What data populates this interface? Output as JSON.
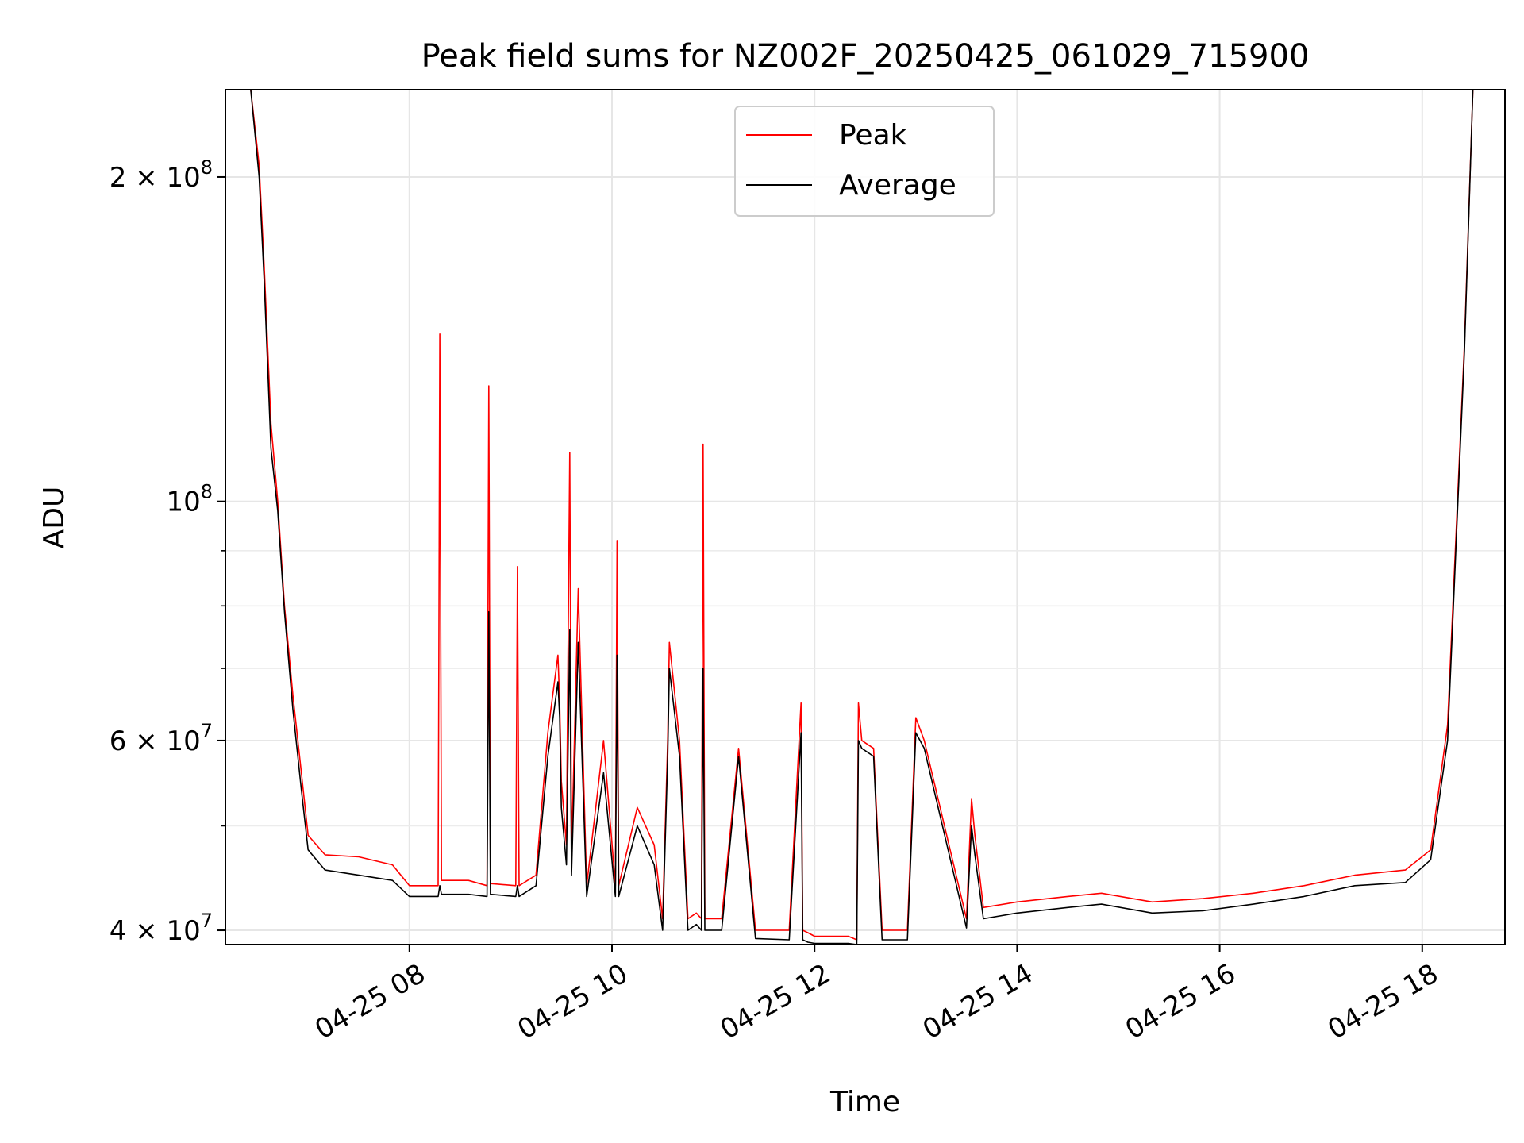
{
  "chart_data": {
    "type": "line",
    "title": "Peak field sums for NZ002F_20250425_061029_715900",
    "xlabel": "Time",
    "ylabel": "ADU",
    "yscale": "log",
    "xlim": [
      "04-25 06:11",
      "04-25 18:49"
    ],
    "ylim": [
      38800000,
      241000000
    ],
    "grid": true,
    "legend_position": "top-center",
    "x_ticks": [
      {
        "value": "04-25 08:00",
        "label": "04-25 08"
      },
      {
        "value": "04-25 10:00",
        "label": "04-25 10"
      },
      {
        "value": "04-25 12:00",
        "label": "04-25 12"
      },
      {
        "value": "04-25 14:00",
        "label": "04-25 14"
      },
      {
        "value": "04-25 16:00",
        "label": "04-25 16"
      },
      {
        "value": "04-25 18:00",
        "label": "04-25 18"
      }
    ],
    "y_ticks": [
      {
        "value": 40000000,
        "label": "4 × 10",
        "exp": "7"
      },
      {
        "value": 60000000,
        "label": "6 × 10",
        "exp": "7"
      },
      {
        "value": 100000000,
        "label": "10",
        "exp": "8"
      },
      {
        "value": 200000000,
        "label": "2 × 10",
        "exp": "8"
      }
    ],
    "y_minor_ticks": [
      50000000,
      70000000,
      80000000,
      90000000
    ],
    "series": [
      {
        "name": "Peak",
        "color": "#ff0000",
        "x": [
          "06:11",
          "06:26",
          "06:31",
          "06:34",
          "06:38",
          "06:42",
          "06:46",
          "06:51",
          "06:56",
          "07:00",
          "07:10",
          "07:30",
          "07:50",
          "08:00",
          "08:17",
          "08:18",
          "08:19",
          "08:35",
          "08:46",
          "08:47",
          "08:48",
          "09:03",
          "09:04",
          "09:05",
          "09:15",
          "09:22",
          "09:28",
          "09:29",
          "09:30",
          "09:33",
          "09:35",
          "09:36",
          "09:40",
          "09:45",
          "09:55",
          "10:02",
          "10:03",
          "10:04",
          "10:15",
          "10:25",
          "10:30",
          "10:33",
          "10:34",
          "10:40",
          "10:45",
          "10:50",
          "10:53",
          "10:54",
          "10:55",
          "11:05",
          "11:15",
          "11:25",
          "11:45",
          "11:52",
          "11:53",
          "11:56",
          "12:00",
          "12:20",
          "12:25",
          "12:26",
          "12:28",
          "12:35",
          "12:40",
          "12:55",
          "13:00",
          "13:05",
          "13:30",
          "13:33",
          "13:35",
          "13:40",
          "14:00",
          "14:30",
          "14:50",
          "15:20",
          "15:50",
          "16:20",
          "16:50",
          "17:20",
          "17:50",
          "18:05",
          "18:15",
          "18:25",
          "18:30",
          "18:49"
        ],
        "values": [
          241000000,
          241000000,
          205000000,
          165000000,
          118000000,
          100000000,
          80000000,
          66000000,
          56000000,
          49000000,
          47000000,
          46800000,
          46000000,
          44000000,
          44000000,
          143000000,
          44500000,
          44500000,
          44000000,
          128000000,
          44200000,
          44000000,
          87000000,
          44000000,
          45000000,
          61000000,
          72000000,
          65000000,
          55000000,
          48000000,
          111000000,
          47000000,
          83000000,
          44000000,
          60000000,
          44000000,
          92000000,
          44000000,
          52000000,
          48000000,
          41000000,
          60000000,
          74000000,
          60000000,
          41000000,
          41500000,
          41000000,
          113000000,
          41000000,
          41000000,
          59000000,
          40000000,
          40000000,
          65000000,
          40000000,
          39800000,
          39500000,
          39500000,
          39200000,
          65000000,
          60000000,
          59000000,
          40000000,
          40000000,
          63000000,
          60000000,
          41000000,
          53000000,
          49000000,
          42000000,
          42500000,
          43000000,
          43300000,
          42500000,
          42800000,
          43300000,
          44000000,
          45000000,
          45500000,
          47500000,
          62000000,
          140000000,
          241000000,
          241000000
        ]
      },
      {
        "name": "Average",
        "color": "#000000",
        "x": [
          "06:11",
          "06:26",
          "06:31",
          "06:34",
          "06:38",
          "06:42",
          "06:46",
          "06:51",
          "06:56",
          "07:00",
          "07:10",
          "07:30",
          "07:50",
          "08:00",
          "08:17",
          "08:18",
          "08:19",
          "08:35",
          "08:46",
          "08:47",
          "08:48",
          "09:03",
          "09:04",
          "09:05",
          "09:15",
          "09:22",
          "09:28",
          "09:29",
          "09:30",
          "09:33",
          "09:35",
          "09:36",
          "09:40",
          "09:45",
          "09:55",
          "10:02",
          "10:03",
          "10:04",
          "10:15",
          "10:25",
          "10:30",
          "10:33",
          "10:34",
          "10:40",
          "10:45",
          "10:50",
          "10:53",
          "10:54",
          "10:55",
          "11:05",
          "11:15",
          "11:25",
          "11:45",
          "11:52",
          "11:53",
          "11:56",
          "12:00",
          "12:20",
          "12:25",
          "12:26",
          "12:28",
          "12:35",
          "12:40",
          "12:55",
          "13:00",
          "13:05",
          "13:30",
          "13:33",
          "13:35",
          "13:40",
          "14:00",
          "14:30",
          "14:50",
          "15:20",
          "15:50",
          "16:20",
          "16:50",
          "17:20",
          "17:50",
          "18:05",
          "18:15",
          "18:25",
          "18:30",
          "18:49"
        ],
        "values": [
          241000000,
          241000000,
          200000000,
          160000000,
          112000000,
          98000000,
          79000000,
          64000000,
          54000000,
          47500000,
          45500000,
          45000000,
          44500000,
          43000000,
          43000000,
          44000000,
          43200000,
          43200000,
          43000000,
          79000000,
          43200000,
          43000000,
          44000000,
          43000000,
          44000000,
          58000000,
          68000000,
          63000000,
          52000000,
          46000000,
          76000000,
          45000000,
          74000000,
          43000000,
          56000000,
          43000000,
          72000000,
          43000000,
          50000000,
          46000000,
          40000000,
          58000000,
          70000000,
          58000000,
          40000000,
          40500000,
          40000000,
          70000000,
          40000000,
          40000000,
          58000000,
          39300000,
          39200000,
          61000000,
          39200000,
          39000000,
          38900000,
          38900000,
          38800000,
          60000000,
          59000000,
          58000000,
          39200000,
          39200000,
          61000000,
          59000000,
          40200000,
          50000000,
          47000000,
          41000000,
          41500000,
          42000000,
          42300000,
          41500000,
          41700000,
          42300000,
          43000000,
          44000000,
          44300000,
          46500000,
          60000000,
          138000000,
          241000000,
          241000000
        ]
      }
    ]
  }
}
